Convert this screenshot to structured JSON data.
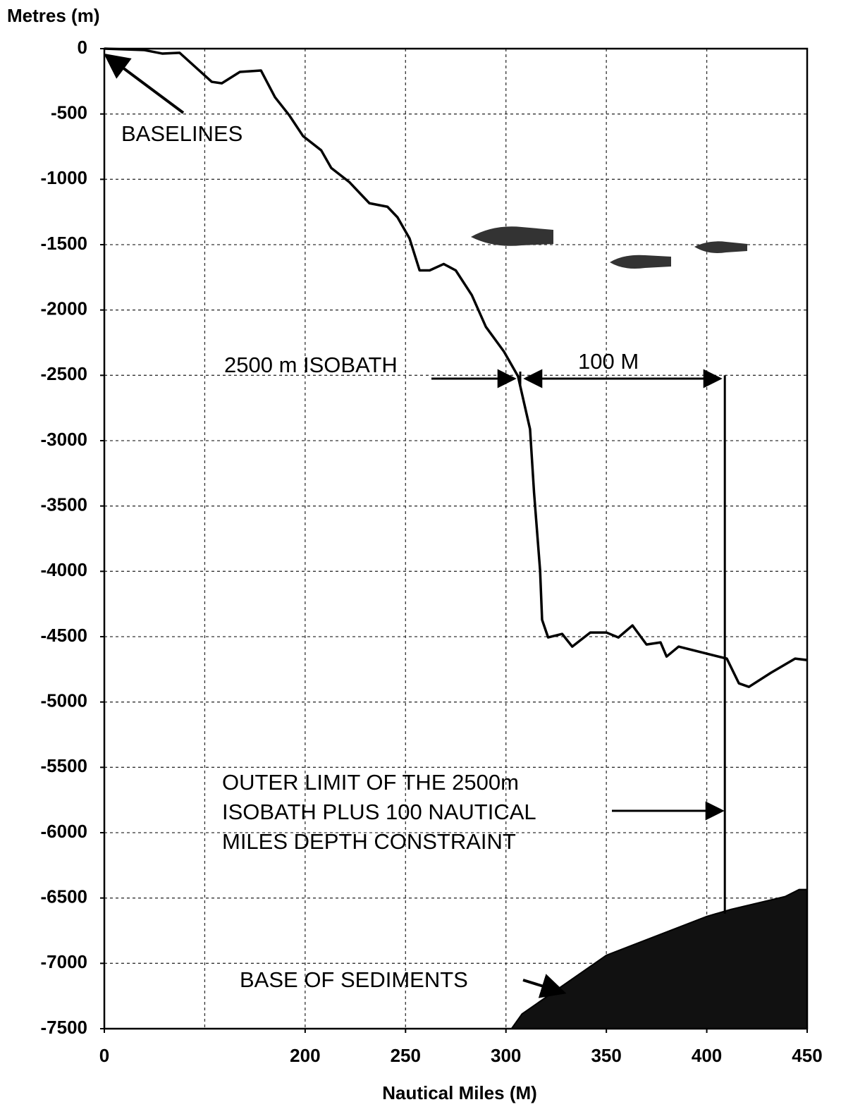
{
  "chart_data": {
    "type": "line",
    "y_label": "Metres (m)",
    "x_label": "Nautical Miles (M)",
    "ylim": [
      -7500,
      0
    ],
    "yticks": [
      0,
      -500,
      -1000,
      -1500,
      -2000,
      -2500,
      -3000,
      -3500,
      -4000,
      -4500,
      -5000,
      -5500,
      -6000,
      -6500,
      -7000,
      -7500
    ],
    "xlim": [
      0,
      450
    ],
    "xticks": [
      0,
      200,
      250,
      300,
      350,
      400,
      450
    ],
    "grid": true,
    "series": [
      {
        "type": "line",
        "color": "#000000",
        "x": [
          0,
          40,
          58,
          75,
          107,
          117,
          135,
          156,
          170,
          184,
          198,
          208,
          213,
          222,
          227,
          232,
          241,
          246,
          252,
          257,
          262,
          269,
          275,
          283,
          290,
          299,
          306,
          312,
          314,
          317,
          318,
          321,
          328,
          333,
          342,
          350,
          356,
          363,
          370,
          377,
          380,
          386,
          400,
          410,
          416,
          421,
          432,
          444,
          450
        ],
        "values": [
          0,
          -11,
          -38,
          -32,
          -254,
          -265,
          -178,
          -167,
          -372,
          -508,
          -670,
          -778,
          -913,
          -1021,
          -1102,
          -1183,
          -1210,
          -1291,
          -1453,
          -1697,
          -1697,
          -1648,
          -1697,
          -1886,
          -2129,
          -2318,
          -2507,
          -2912,
          -3399,
          -3993,
          -4371,
          -4506,
          -4479,
          -4576,
          -4468,
          -4468,
          -4506,
          -4414,
          -4560,
          -4544,
          -4652,
          -4576,
          -4630,
          -4668,
          -4857,
          -4884,
          -4776,
          -4668,
          -4679
        ]
      },
      {
        "type": "area",
        "color": "#111111",
        "x": [
          303,
          308,
          350,
          400,
          412,
          439,
          446,
          450
        ],
        "values": [
          -7495,
          -7387,
          -6938,
          -6641,
          -6587,
          -6489,
          -6435,
          -6435
        ]
      }
    ],
    "reference_lines": [
      {
        "x": [
          409,
          409
        ],
        "values": [
          -2500,
          -6620
        ]
      }
    ],
    "annotations": {
      "baselines": "BASELINES",
      "isobath": "2500 m ISOBATH",
      "distance": "100 M",
      "outer_limit": [
        "OUTER LIMIT OF THE 2500m",
        "ISOBATH PLUS 100 NAUTICAL",
        "MILES DEPTH CONSTRAINT"
      ],
      "sediments": "BASE OF SEDIMENTS"
    }
  }
}
